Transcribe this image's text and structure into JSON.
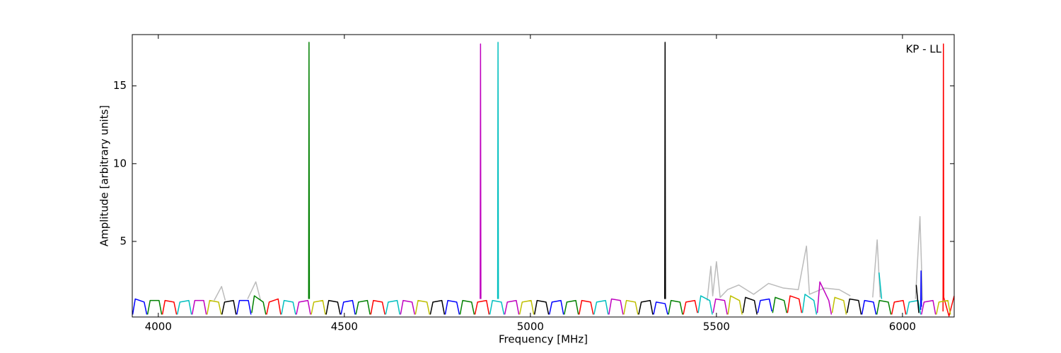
{
  "chart_data": {
    "type": "line",
    "xlabel": "Frequency [MHz]",
    "ylabel": "Amplitude [arbitrary units]",
    "annotation": "KP - LL",
    "xlim": [
      3930,
      6139
    ],
    "ylim": [
      0.14,
      18.3
    ],
    "xticks": [
      4000,
      4500,
      5000,
      5500,
      6000
    ],
    "yticks": [
      5,
      10,
      15
    ],
    "grid": false,
    "series": [
      {
        "color": "#bbbbbb",
        "x": [
          4150,
          4170,
          4180,
          4181,
          4240,
          4262,
          4275,
          4276,
          5475,
          5485,
          5490,
          5500,
          5510,
          5530,
          5560,
          5600,
          5640,
          5680,
          5720,
          5742,
          5750,
          5790,
          5830,
          5860,
          5861,
          5920,
          5932,
          5940,
          5941,
          6035,
          6047,
          6054
        ],
        "values": [
          1.2,
          2.1,
          1.2,
          null,
          1.3,
          2.4,
          1.2,
          null,
          1.2,
          3.4,
          1.5,
          3.7,
          1.4,
          1.9,
          2.2,
          1.6,
          2.3,
          2.0,
          1.9,
          4.7,
          1.6,
          2.0,
          1.9,
          1.5,
          null,
          1.4,
          5.1,
          1.4,
          null,
          1.3,
          6.6,
          1.2
        ]
      },
      {
        "color": "#0000ff",
        "x": [
          3931,
          3938,
          3962,
          3969,
          3970,
          4211,
          4218,
          4242,
          4249,
          4250,
          4491,
          4498,
          4522,
          4529,
          4530,
          4771,
          4778,
          4802,
          4809,
          4810,
          5051,
          5058,
          5082,
          5089,
          5090,
          5331,
          5338,
          5362,
          5369,
          5370,
          5611,
          5618,
          5642,
          5649,
          5650,
          5891,
          5898,
          5922,
          5929,
          5930,
          6049,
          6050,
          6051
        ],
        "values": [
          0.3,
          1.3,
          1.1,
          0.3,
          null,
          0.3,
          1.2,
          1.2,
          0.3,
          null,
          0.3,
          1.1,
          1.2,
          0.3,
          null,
          0.3,
          1.2,
          1.1,
          0.3,
          null,
          0.3,
          1.1,
          1.2,
          0.3,
          null,
          0.3,
          1.1,
          1.0,
          0.3,
          null,
          0.4,
          1.2,
          1.3,
          0.5,
          null,
          0.3,
          1.2,
          1.1,
          0.3,
          null,
          0.6,
          3.1,
          0.8
        ]
      },
      {
        "color": "#008000",
        "x": [
          3971,
          3978,
          4002,
          4009,
          4010,
          4251,
          4258,
          4282,
          4289,
          4290,
          4531,
          4538,
          4562,
          4569,
          4570,
          4811,
          4818,
          4842,
          4849,
          4850,
          5091,
          5098,
          5122,
          5129,
          5130,
          5371,
          5378,
          5402,
          5409,
          5410,
          5651,
          5658,
          5682,
          5689,
          5690,
          5931,
          5938,
          5962,
          5969,
          5970,
          4404,
          4405,
          4406
        ],
        "values": [
          0.3,
          1.2,
          1.2,
          0.3,
          null,
          0.4,
          1.5,
          1.1,
          0.3,
          null,
          0.3,
          1.1,
          1.2,
          0.3,
          null,
          0.3,
          1.2,
          1.1,
          0.3,
          null,
          0.3,
          1.1,
          1.2,
          0.3,
          null,
          0.3,
          1.2,
          1.1,
          0.3,
          null,
          0.4,
          1.4,
          1.2,
          0.4,
          null,
          0.3,
          1.2,
          1.1,
          0.3,
          null,
          1.3,
          17.8,
          1.3
        ]
      },
      {
        "color": "#ff0000",
        "x": [
          4011,
          4018,
          4042,
          4049,
          4050,
          4291,
          4298,
          4322,
          4329,
          4330,
          4571,
          4578,
          4602,
          4609,
          4610,
          4851,
          4858,
          4882,
          4889,
          4890,
          5131,
          5138,
          5162,
          5169,
          5170,
          5411,
          5418,
          5442,
          5449,
          5450,
          5691,
          5698,
          5722,
          5729,
          5730,
          5971,
          5978,
          6002,
          6009,
          6010,
          6109,
          6110,
          6111,
          6125,
          6139
        ],
        "values": [
          0.3,
          1.2,
          1.1,
          0.3,
          null,
          0.3,
          1.1,
          1.3,
          0.3,
          null,
          0.3,
          1.2,
          1.1,
          0.3,
          null,
          0.3,
          1.1,
          1.2,
          0.3,
          null,
          0.3,
          1.2,
          1.1,
          0.3,
          null,
          0.3,
          1.1,
          1.2,
          0.4,
          null,
          0.4,
          1.5,
          1.3,
          0.4,
          null,
          0.3,
          1.1,
          1.2,
          0.3,
          null,
          0.5,
          17.7,
          1.4,
          0.2,
          1.5
        ]
      },
      {
        "color": "#00bfbf",
        "x": [
          4051,
          4058,
          4082,
          4089,
          4090,
          4331,
          4338,
          4362,
          4369,
          4370,
          4611,
          4618,
          4642,
          4649,
          4650,
          4891,
          4898,
          4922,
          4929,
          4930,
          5171,
          5178,
          5202,
          5209,
          5210,
          5451,
          5458,
          5482,
          5489,
          5490,
          5731,
          5738,
          5762,
          5769,
          5770,
          6011,
          6018,
          6042,
          6049,
          6050,
          4912,
          4913,
          4914,
          5930,
          5937,
          5944
        ],
        "values": [
          0.3,
          1.1,
          1.2,
          0.3,
          null,
          0.3,
          1.2,
          1.1,
          0.3,
          null,
          0.3,
          1.1,
          1.2,
          0.3,
          null,
          0.3,
          1.2,
          1.1,
          0.3,
          null,
          0.3,
          1.1,
          1.2,
          0.3,
          null,
          0.4,
          1.5,
          1.2,
          0.3,
          null,
          0.4,
          1.6,
          1.2,
          0.3,
          null,
          0.3,
          1.1,
          1.2,
          0.3,
          null,
          1.3,
          17.8,
          1.3,
          null,
          3.0,
          1.3
        ]
      },
      {
        "color": "#bf00bf",
        "x": [
          4091,
          4098,
          4122,
          4129,
          4130,
          4371,
          4378,
          4402,
          4409,
          4410,
          4651,
          4658,
          4682,
          4689,
          4690,
          4931,
          4938,
          4962,
          4969,
          4970,
          5211,
          5218,
          5242,
          5249,
          5250,
          5491,
          5498,
          5522,
          5529,
          5530,
          5771,
          5778,
          5802,
          5809,
          5810,
          6051,
          6058,
          6082,
          6089,
          6090,
          4865,
          4866,
          4867
        ],
        "values": [
          0.3,
          1.2,
          1.2,
          0.3,
          null,
          0.3,
          1.1,
          1.2,
          0.3,
          null,
          0.3,
          1.2,
          1.1,
          0.3,
          null,
          0.3,
          1.1,
          1.2,
          0.3,
          null,
          0.3,
          1.3,
          1.2,
          0.3,
          null,
          0.4,
          1.3,
          1.2,
          0.3,
          null,
          0.4,
          2.4,
          1.2,
          0.3,
          null,
          0.3,
          1.1,
          1.2,
          0.3,
          null,
          1.3,
          17.7,
          1.3
        ]
      },
      {
        "color": "#bfbf00",
        "x": [
          4131,
          4138,
          4162,
          4169,
          4170,
          4411,
          4418,
          4442,
          4449,
          4450,
          4691,
          4698,
          4722,
          4729,
          4730,
          4971,
          4978,
          5002,
          5009,
          5010,
          5251,
          5258,
          5282,
          5289,
          5290,
          5531,
          5538,
          5562,
          5569,
          5570,
          5811,
          5818,
          5842,
          5849,
          5850,
          6091,
          6098,
          6122,
          6129,
          6130
        ],
        "values": [
          0.3,
          1.2,
          1.1,
          0.3,
          null,
          0.3,
          1.1,
          1.2,
          0.3,
          null,
          0.3,
          1.2,
          1.1,
          0.3,
          null,
          0.3,
          1.1,
          1.2,
          0.3,
          null,
          0.3,
          1.2,
          1.1,
          0.3,
          null,
          0.3,
          1.5,
          1.2,
          0.3,
          null,
          0.4,
          1.4,
          1.2,
          0.3,
          null,
          0.3,
          1.1,
          1.2,
          0.3,
          null
        ]
      },
      {
        "color": "#000000",
        "x": [
          4171,
          4178,
          4202,
          4209,
          4210,
          4451,
          4458,
          4482,
          4489,
          4490,
          4731,
          4738,
          4762,
          4769,
          4770,
          5011,
          5018,
          5042,
          5049,
          5050,
          5291,
          5298,
          5322,
          5329,
          5330,
          5571,
          5578,
          5602,
          5609,
          5610,
          5851,
          5858,
          5882,
          5889,
          5890,
          5361,
          5362,
          5363,
          6030,
          6037,
          6044
        ],
        "values": [
          0.3,
          1.1,
          1.2,
          0.3,
          null,
          0.3,
          1.2,
          1.1,
          0.3,
          null,
          0.3,
          1.1,
          1.2,
          0.3,
          null,
          0.3,
          1.2,
          1.1,
          0.3,
          null,
          0.3,
          1.1,
          1.2,
          0.3,
          null,
          0.4,
          1.4,
          1.2,
          0.3,
          null,
          0.4,
          1.3,
          1.2,
          0.3,
          null,
          1.3,
          17.8,
          1.3,
          null,
          2.2,
          0.4
        ]
      }
    ]
  }
}
